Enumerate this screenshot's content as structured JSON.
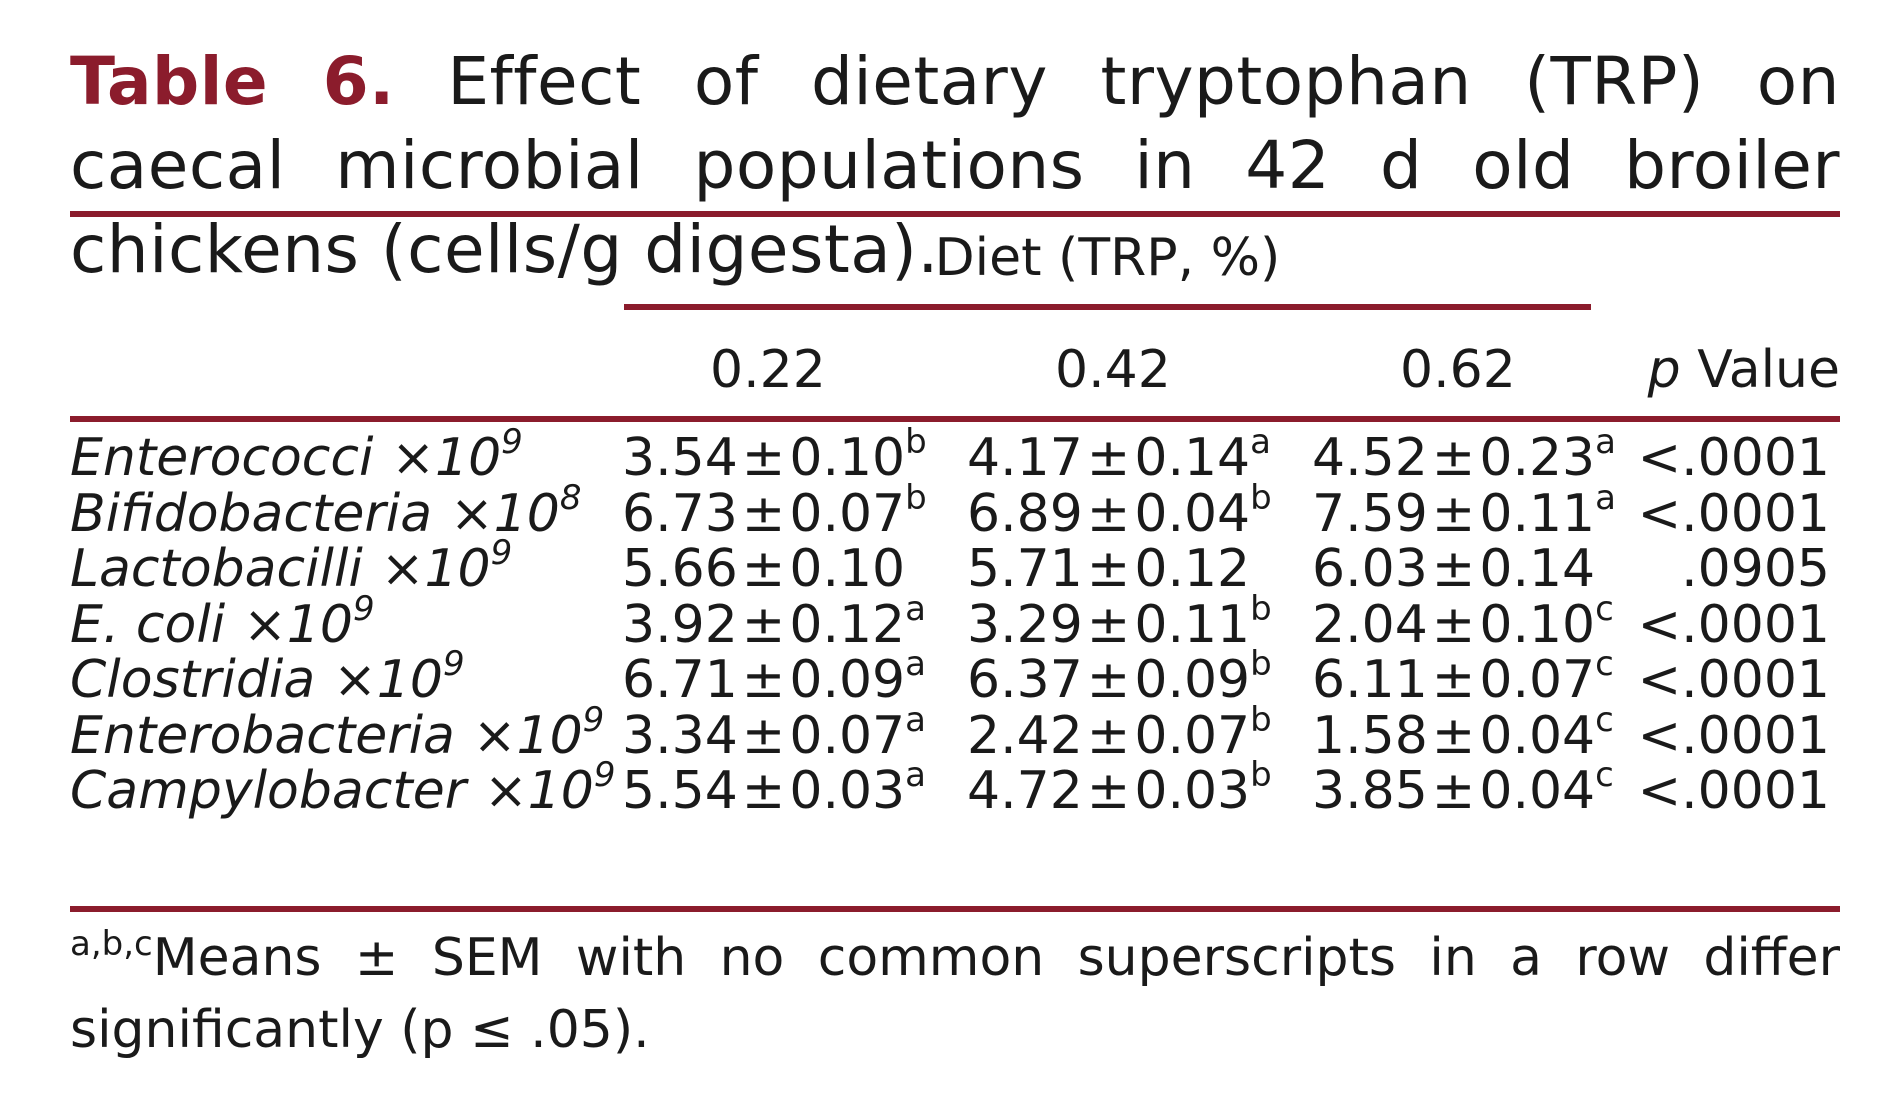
{
  "caption": {
    "label": "Table 6.",
    "text": "Effect of dietary tryptophan (TRP) on caecal microbial populations in 42 d old broiler chickens (cells/g digesta)."
  },
  "table": {
    "group_header": "Diet (TRP, %)",
    "columns": [
      "0.22",
      "0.42",
      "0.62"
    ],
    "pvalue_header_italic": "p",
    "pvalue_header_rest": " Value",
    "times_symbol": "×",
    "pm": "±",
    "rows": [
      {
        "name": "Enterococci",
        "mult": "10",
        "exp": "9",
        "c1": {
          "mean": "3.54",
          "sem": "0.10",
          "sup": "b"
        },
        "c2": {
          "mean": "4.17",
          "sem": "0.14",
          "sup": "a"
        },
        "c3": {
          "mean": "4.52",
          "sem": "0.23",
          "sup": "a"
        },
        "p": "<.0001"
      },
      {
        "name": "Bifidobacteria",
        "mult": "10",
        "exp": "8",
        "c1": {
          "mean": "6.73",
          "sem": "0.07",
          "sup": "b"
        },
        "c2": {
          "mean": "6.89",
          "sem": "0.04",
          "sup": "b"
        },
        "c3": {
          "mean": "7.59",
          "sem": "0.11",
          "sup": "a"
        },
        "p": "<.0001"
      },
      {
        "name": "Lactobacilli",
        "mult": "10",
        "exp": "9",
        "c1": {
          "mean": "5.66",
          "sem": "0.10",
          "sup": ""
        },
        "c2": {
          "mean": "5.71",
          "sem": "0.12",
          "sup": ""
        },
        "c3": {
          "mean": "6.03",
          "sem": "0.14",
          "sup": ""
        },
        "p": ".0905"
      },
      {
        "name": "E. coli",
        "mult": "10",
        "exp": "9",
        "c1": {
          "mean": "3.92",
          "sem": "0.12",
          "sup": "a"
        },
        "c2": {
          "mean": "3.29",
          "sem": "0.11",
          "sup": "b"
        },
        "c3": {
          "mean": "2.04",
          "sem": "0.10",
          "sup": "c"
        },
        "p": "<.0001"
      },
      {
        "name": "Clostridia",
        "mult": "10",
        "exp": "9",
        "c1": {
          "mean": "6.71",
          "sem": "0.09",
          "sup": "a"
        },
        "c2": {
          "mean": "6.37",
          "sem": "0.09",
          "sup": "b"
        },
        "c3": {
          "mean": "6.11",
          "sem": "0.07",
          "sup": "c"
        },
        "p": "<.0001"
      },
      {
        "name": "Enterobacteria",
        "mult": "10",
        "exp": "9",
        "c1": {
          "mean": "3.34",
          "sem": "0.07",
          "sup": "a"
        },
        "c2": {
          "mean": "2.42",
          "sem": "0.07",
          "sup": "b"
        },
        "c3": {
          "mean": "1.58",
          "sem": "0.04",
          "sup": "c"
        },
        "p": "<.0001"
      },
      {
        "name": "Campylobacter",
        "mult": "10",
        "exp": "9",
        "c1": {
          "mean": "5.54",
          "sem": "0.03",
          "sup": "a"
        },
        "c2": {
          "mean": "4.72",
          "sem": "0.03",
          "sup": "b"
        },
        "c3": {
          "mean": "3.85",
          "sem": "0.04",
          "sup": "c"
        },
        "p": "<.0001"
      }
    ]
  },
  "footnote": {
    "sup": "a,b,c",
    "text": "Means ± SEM with no common superscripts in a row differ significantly (p ≤ .05)."
  },
  "colors": {
    "accent": "#8b1c2c",
    "text": "#1a1a1a"
  }
}
